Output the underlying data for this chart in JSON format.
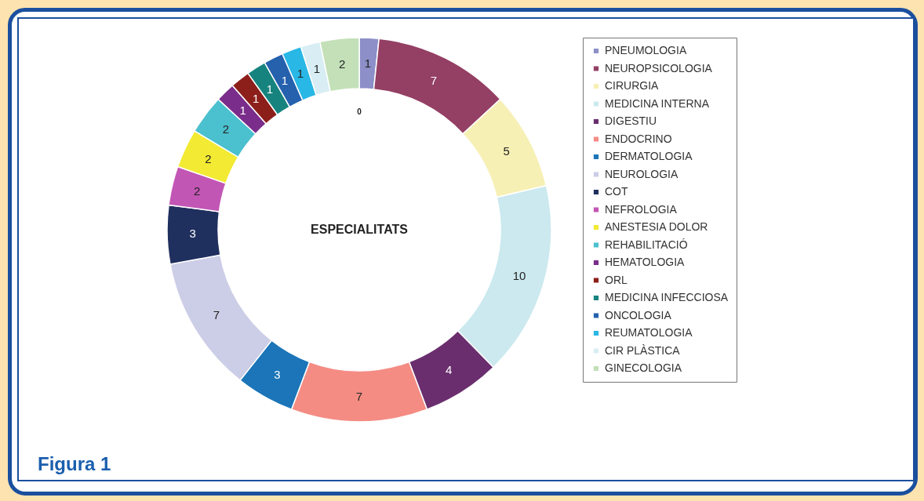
{
  "chart_data": {
    "type": "donut",
    "title": "ESPECIALITATS",
    "categories": [
      "PNEUMOLOGIA",
      "NEUROPSICOLOGIA",
      "CIRURGIA",
      "MEDICINA INTERNA",
      "DIGESTIU",
      "ENDOCRINO",
      "DERMATOLOGIA",
      "NEUROLOGIA",
      "COT",
      "NEFROLOGIA",
      "ANESTESIA DOLOR",
      "REHABILITACIÓ",
      "HEMATOLOGIA",
      "ORL",
      "MEDICINA INFECCIOSA",
      "ONCOLOGIA",
      "REUMATOLOGIA",
      "CIR PLÀSTICA",
      "GINECOLOGIA"
    ],
    "values": [
      1,
      7,
      5,
      10,
      4,
      7,
      3,
      7,
      3,
      2,
      2,
      2,
      1,
      1,
      1,
      1,
      1,
      1,
      2
    ],
    "colors": [
      "#8c8fc8",
      "#943f64",
      "#f7f0b5",
      "#cbe9ef",
      "#6a2e6e",
      "#f48c84",
      "#1b75b8",
      "#cccde6",
      "#1f2f5e",
      "#c256b5",
      "#f2ea33",
      "#4bc0cf",
      "#7a2d8a",
      "#8c1f1a",
      "#17837e",
      "#2561ad",
      "#29b7e5",
      "#d8eef4",
      "#c3e0b8"
    ],
    "data_labels": true,
    "legend": "right",
    "annotations": [
      "Figura 1",
      "0"
    ]
  }
}
